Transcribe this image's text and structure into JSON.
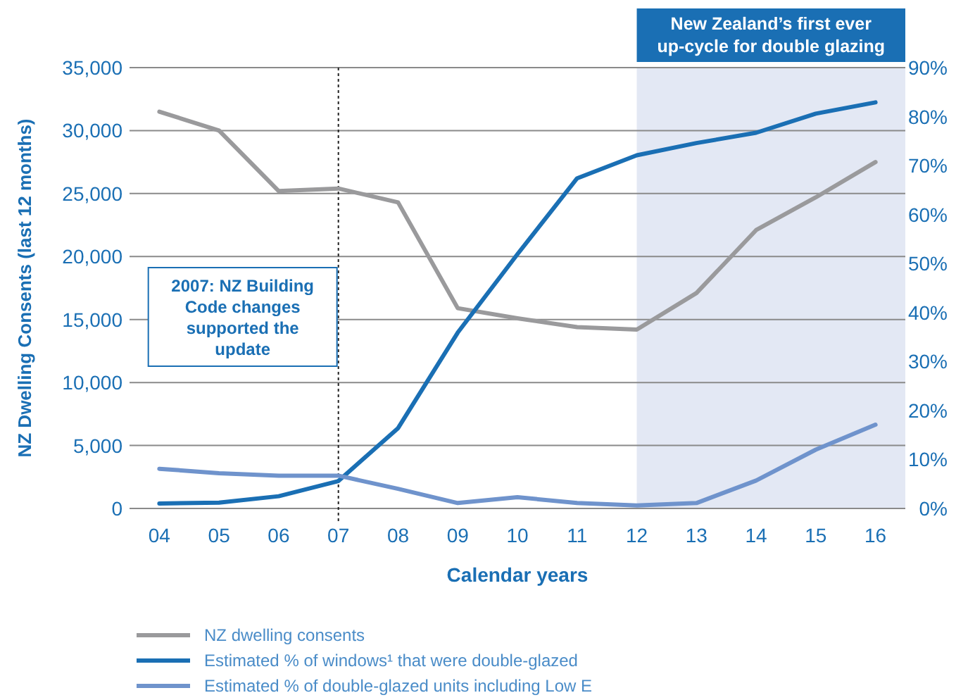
{
  "chart_data": {
    "type": "line",
    "xlabel": "Calendar years",
    "ylabel": "NZ Dwelling Consents (last 12 months)",
    "x": [
      4,
      5,
      6,
      7,
      8,
      9,
      10,
      11,
      12,
      13,
      14,
      15,
      16
    ],
    "xlim": [
      3.5,
      16.5
    ],
    "xticks": [
      {
        "value": 4,
        "label": "04"
      },
      {
        "value": 5,
        "label": "05"
      },
      {
        "value": 6,
        "label": "06"
      },
      {
        "value": 7,
        "label": "07"
      },
      {
        "value": 8,
        "label": "08"
      },
      {
        "value": 9,
        "label": "09"
      },
      {
        "value": 10,
        "label": "10"
      },
      {
        "value": 11,
        "label": "11"
      },
      {
        "value": 12,
        "label": "12"
      },
      {
        "value": 13,
        "label": "13"
      },
      {
        "value": 14,
        "label": "14"
      },
      {
        "value": 15,
        "label": "15"
      },
      {
        "value": 16,
        "label": "16"
      }
    ],
    "ylim": [
      0,
      35000
    ],
    "yticks": [
      {
        "value": 0,
        "label": "0"
      },
      {
        "value": 5000,
        "label": "5,000"
      },
      {
        "value": 10000,
        "label": "10,000"
      },
      {
        "value": 15000,
        "label": "15,000"
      },
      {
        "value": 20000,
        "label": "20,000"
      },
      {
        "value": 25000,
        "label": "25,000"
      },
      {
        "value": 30000,
        "label": "30,000"
      },
      {
        "value": 35000,
        "label": "35,000"
      }
    ],
    "y2lim": [
      0,
      90
    ],
    "y2ticks": [
      {
        "value": 0,
        "label": "0%"
      },
      {
        "value": 10,
        "label": "10%"
      },
      {
        "value": 20,
        "label": "20%"
      },
      {
        "value": 30,
        "label": "30%"
      },
      {
        "value": 40,
        "label": "40%"
      },
      {
        "value": 50,
        "label": "50%"
      },
      {
        "value": 60,
        "label": "60%"
      },
      {
        "value": 70,
        "label": "70%"
      },
      {
        "value": 80,
        "label": "80%"
      },
      {
        "value": 90,
        "label": "90%"
      }
    ],
    "series": [
      {
        "name": "NZ dwelling consents",
        "color": "#9a9a9c",
        "values": [
          31500,
          30000,
          25200,
          25400,
          24300,
          15900,
          15100,
          14400,
          14200,
          17100,
          22100,
          24700,
          27500
        ]
      },
      {
        "name": "Estimated % of windows¹ that were double-glazed",
        "color": "#1a6fb4",
        "axis": "y2",
        "values": [
          1.0,
          1.2,
          2.5,
          5.6,
          16.4,
          35.9,
          51.9,
          67.4,
          72.1,
          74.6,
          76.7,
          80.6,
          82.9
        ]
      },
      {
        "name": "Estimated % of double-glazed units including Low E",
        "color": "#6f93cc",
        "axis": "y2",
        "values": [
          8.1,
          7.2,
          6.7,
          6.7,
          4.0,
          1.1,
          2.3,
          1.1,
          0.6,
          1.1,
          5.7,
          12.0,
          17.1
        ]
      }
    ],
    "ref_lines": [
      {
        "axis": "x",
        "value": 7,
        "label": "2007: NZ Building Code changes supported the update",
        "line_style": "dotted",
        "color": "#222222"
      }
    ],
    "bands": [
      {
        "axis": "x",
        "from": 12,
        "to": 16.5,
        "label": "New Zealand’s first ever up-cycle for double glazing",
        "color": "#e3e8f4"
      }
    ],
    "grid": "y",
    "legend": "bottom",
    "line_style": "solid",
    "marker": "none"
  }
}
